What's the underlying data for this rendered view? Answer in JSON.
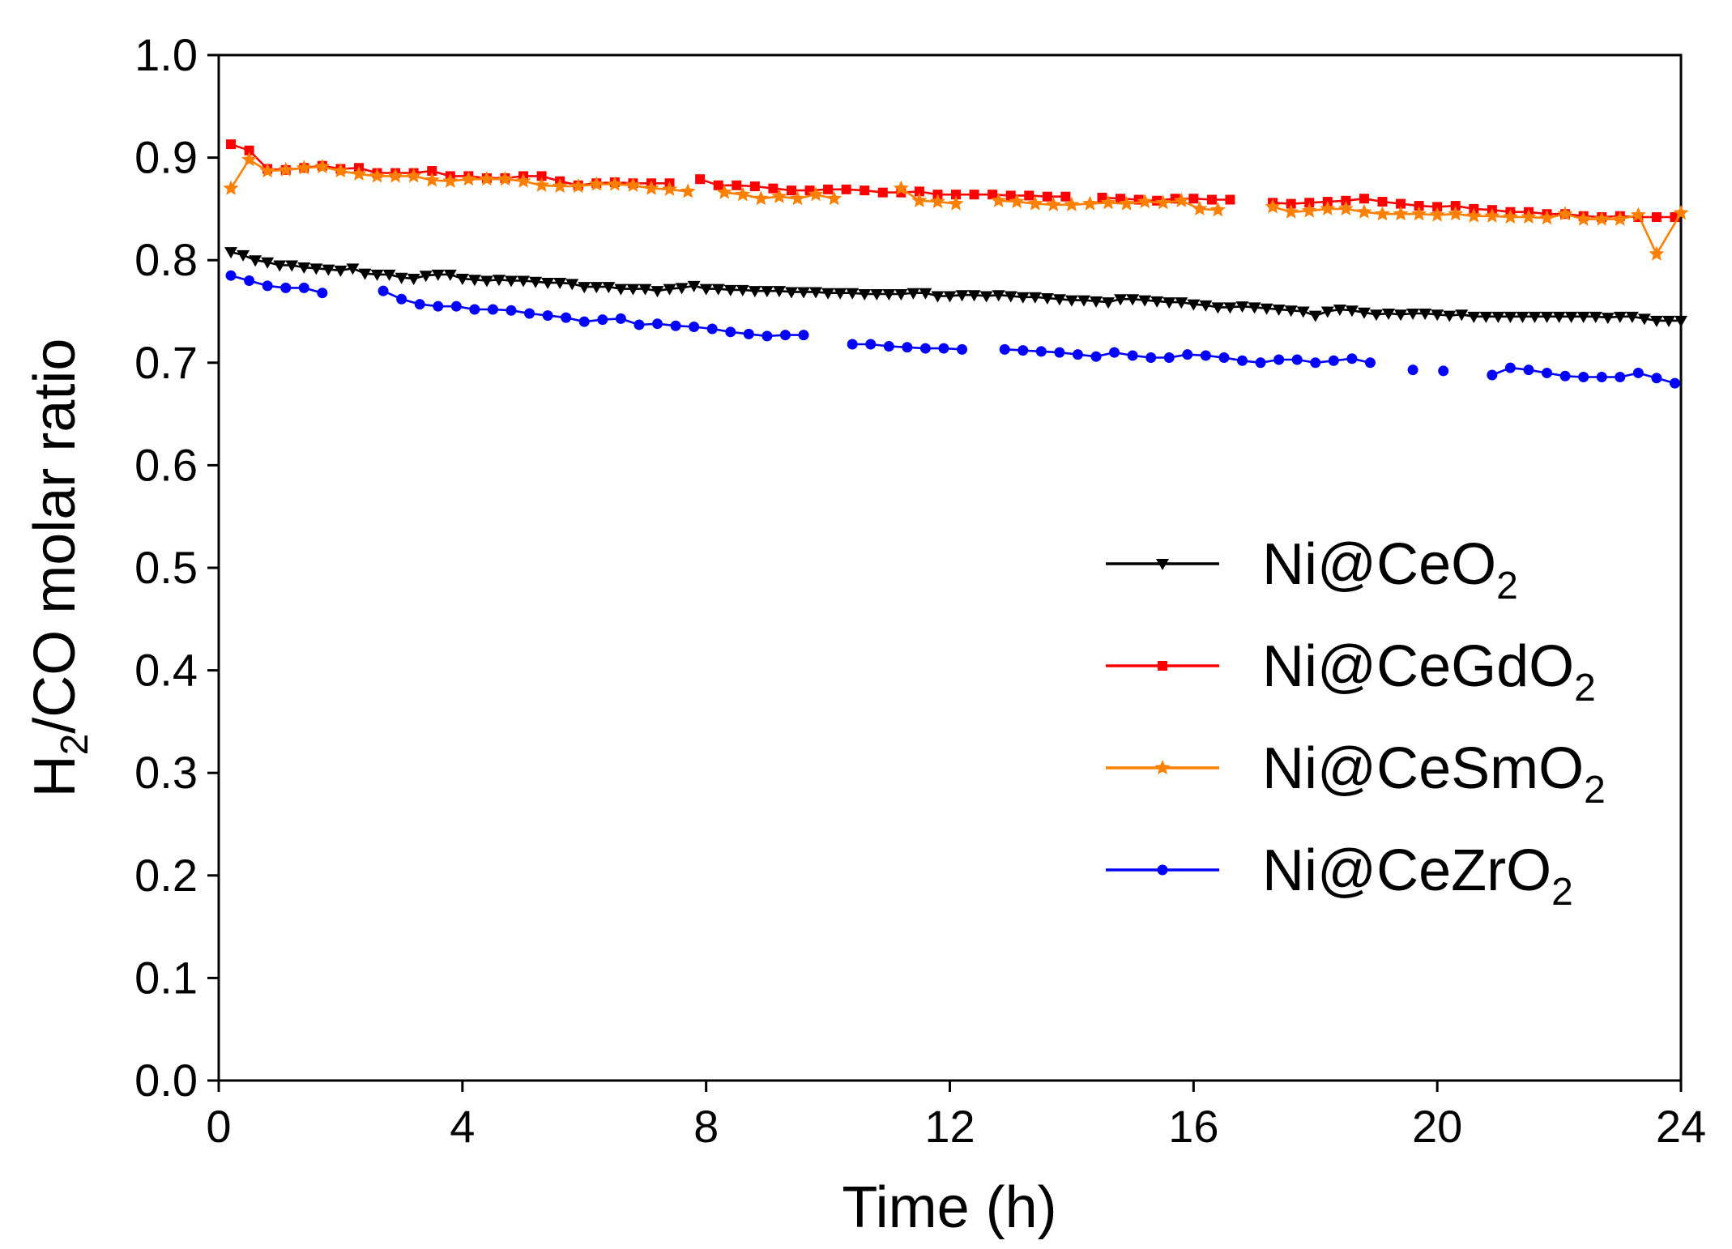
{
  "chart_data": {
    "type": "line",
    "title": "",
    "xlabel": "Time (h)",
    "ylabel": "H2/CO molar ratio",
    "ylabel_parts": {
      "main": "H",
      "sub": "2",
      "rest": "/CO molar ratio"
    },
    "xlim": [
      0,
      24
    ],
    "ylim": [
      0.0,
      1.0
    ],
    "x_ticks": [
      "0",
      "4",
      "8",
      "12",
      "16",
      "20",
      "24"
    ],
    "x_tick_values": [
      0,
      4,
      8,
      12,
      16,
      20,
      24
    ],
    "y_ticks": [
      "0.0",
      "0.1",
      "0.2",
      "0.3",
      "0.4",
      "0.5",
      "0.6",
      "0.7",
      "0.8",
      "0.9",
      "1.0"
    ],
    "y_tick_values": [
      0.0,
      0.1,
      0.2,
      0.3,
      0.4,
      0.5,
      0.6,
      0.7,
      0.8,
      0.9,
      1.0
    ],
    "grid": false,
    "legend_position": "center-right",
    "series": [
      {
        "name": "Ni@CeO2",
        "label_main": "Ni@CeO",
        "label_sub": "2",
        "color": "#000000",
        "marker": "triangle-down",
        "x": [
          0.2,
          0.4,
          0.6,
          0.8,
          1.0,
          1.2,
          1.4,
          1.6,
          1.8,
          2.0,
          2.2,
          2.4,
          2.6,
          2.8,
          3.0,
          3.2,
          3.4,
          3.6,
          3.8,
          4.0,
          4.2,
          4.4,
          4.6,
          4.8,
          5.0,
          5.2,
          5.4,
          5.6,
          5.8,
          6.0,
          6.2,
          6.4,
          6.6,
          6.8,
          7.0,
          7.2,
          7.4,
          7.6,
          7.8,
          8.0,
          8.2,
          8.4,
          8.6,
          8.8,
          9.0,
          9.2,
          9.4,
          9.6,
          9.8,
          10.0,
          10.2,
          10.4,
          10.6,
          10.8,
          11.0,
          11.2,
          11.4,
          11.6,
          11.8,
          12.0,
          12.2,
          12.4,
          12.6,
          12.8,
          13.0,
          13.2,
          13.4,
          13.6,
          13.8,
          14.0,
          14.2,
          14.4,
          14.6,
          14.8,
          15.0,
          15.2,
          15.4,
          15.6,
          15.8,
          16.0,
          16.2,
          16.4,
          16.6,
          16.8,
          17.0,
          17.2,
          17.4,
          17.6,
          17.8,
          18.0,
          18.2,
          18.4,
          18.6,
          18.8,
          19.0,
          19.2,
          19.4,
          19.6,
          19.8,
          20.0,
          20.2,
          20.4,
          20.6,
          20.8,
          21.0,
          21.2,
          21.4,
          21.6,
          21.8,
          22.0,
          22.2,
          22.4,
          22.6,
          22.8,
          23.0,
          23.2,
          23.4,
          23.6,
          23.8,
          24.0
        ],
        "y": [
          0.808,
          0.805,
          0.8,
          0.798,
          0.795,
          0.795,
          0.793,
          0.792,
          0.791,
          0.79,
          0.792,
          0.787,
          0.786,
          0.786,
          0.783,
          0.782,
          0.785,
          0.786,
          0.786,
          0.782,
          0.781,
          0.78,
          0.781,
          0.78,
          0.78,
          0.779,
          0.778,
          0.778,
          0.777,
          0.774,
          0.774,
          0.774,
          0.772,
          0.772,
          0.772,
          0.77,
          0.772,
          0.773,
          0.775,
          0.772,
          0.772,
          0.771,
          0.771,
          0.77,
          0.77,
          0.77,
          0.769,
          0.769,
          0.769,
          0.768,
          0.768,
          0.768,
          0.767,
          0.767,
          0.767,
          0.767,
          0.768,
          0.768,
          0.765,
          0.765,
          0.766,
          0.766,
          0.765,
          0.766,
          0.765,
          0.764,
          0.764,
          0.763,
          0.762,
          0.761,
          0.761,
          0.76,
          0.759,
          0.762,
          0.762,
          0.761,
          0.76,
          0.759,
          0.759,
          0.757,
          0.756,
          0.754,
          0.754,
          0.755,
          0.754,
          0.753,
          0.752,
          0.751,
          0.75,
          0.746,
          0.75,
          0.752,
          0.751,
          0.749,
          0.747,
          0.748,
          0.747,
          0.748,
          0.748,
          0.747,
          0.746,
          0.747,
          0.745,
          0.745,
          0.745,
          0.745,
          0.745,
          0.745,
          0.745,
          0.745,
          0.745,
          0.745,
          0.745,
          0.744,
          0.745,
          0.745,
          0.743,
          0.741,
          0.741,
          0.741
        ]
      },
      {
        "name": "Ni@CeGdO2",
        "label_main": "Ni@CeGdO",
        "label_sub": "2",
        "color": "#ff0000",
        "marker": "square",
        "x": [
          0.2,
          0.5,
          0.8,
          1.1,
          1.4,
          1.7,
          2.0,
          2.3,
          2.6,
          2.9,
          3.2,
          3.5,
          3.8,
          4.1,
          4.4,
          4.7,
          5.0,
          5.3,
          5.6,
          5.9,
          6.2,
          6.5,
          6.8,
          7.1,
          7.4,
          null,
          7.9,
          8.2,
          8.5,
          8.8,
          9.1,
          9.4,
          9.7,
          10.0,
          10.3,
          10.6,
          10.9,
          11.2,
          11.5,
          11.8,
          12.1,
          12.4,
          12.7,
          13.0,
          13.3,
          13.6,
          13.9,
          null,
          14.5,
          14.8,
          15.1,
          15.4,
          15.7,
          16.0,
          16.3,
          16.6,
          null,
          17.3,
          17.6,
          17.9,
          18.2,
          18.5,
          18.8,
          19.1,
          19.4,
          19.7,
          20.0,
          20.3,
          20.6,
          20.9,
          21.2,
          21.5,
          21.8,
          22.1,
          22.4,
          22.7,
          23.0,
          23.3,
          23.6,
          23.9
        ],
        "y": [
          0.913,
          0.907,
          0.889,
          0.888,
          0.89,
          0.892,
          0.889,
          0.89,
          0.885,
          0.885,
          0.885,
          0.887,
          0.882,
          0.882,
          0.88,
          0.88,
          0.882,
          0.882,
          0.877,
          0.873,
          0.875,
          0.876,
          0.875,
          0.875,
          0.875,
          null,
          0.879,
          0.873,
          0.873,
          0.872,
          0.87,
          0.868,
          0.868,
          0.869,
          0.869,
          0.868,
          0.866,
          0.866,
          0.867,
          0.864,
          0.864,
          0.864,
          0.864,
          0.863,
          0.863,
          0.862,
          0.862,
          null,
          0.861,
          0.86,
          0.859,
          0.858,
          0.86,
          0.86,
          0.859,
          0.859,
          null,
          0.856,
          0.855,
          0.856,
          0.857,
          0.858,
          0.86,
          0.857,
          0.855,
          0.853,
          0.852,
          0.853,
          0.85,
          0.849,
          0.847,
          0.847,
          0.845,
          0.845,
          0.843,
          0.842,
          0.843,
          0.842,
          0.842,
          0.842
        ]
      },
      {
        "name": "Ni@CeSmO2",
        "label_main": "Ni@CeSmO",
        "label_sub": "2",
        "color": "#ff7f00",
        "marker": "star",
        "x": [
          0.2,
          0.5,
          0.8,
          1.1,
          1.4,
          1.7,
          2.0,
          2.3,
          2.6,
          2.9,
          3.2,
          3.5,
          3.8,
          4.1,
          4.4,
          4.7,
          5.0,
          5.3,
          5.6,
          5.9,
          6.2,
          6.5,
          6.8,
          7.1,
          7.4,
          7.7,
          null,
          8.3,
          8.6,
          8.9,
          9.2,
          9.5,
          9.8,
          10.1,
          null,
          11.2,
          11.5,
          11.8,
          12.1,
          null,
          12.8,
          13.1,
          13.4,
          13.7,
          14.0,
          14.3,
          14.6,
          14.9,
          15.2,
          15.5,
          15.8,
          16.1,
          16.4,
          null,
          17.3,
          17.6,
          17.9,
          18.2,
          18.5,
          18.8,
          19.1,
          19.4,
          19.7,
          20.0,
          20.3,
          20.6,
          20.9,
          21.2,
          21.5,
          21.8,
          22.1,
          22.4,
          22.7,
          23.0,
          23.3,
          23.6,
          24.0
        ],
        "y": [
          0.87,
          0.898,
          0.887,
          0.888,
          0.89,
          0.891,
          0.887,
          0.884,
          0.882,
          0.882,
          0.882,
          0.878,
          0.877,
          0.879,
          0.879,
          0.879,
          0.877,
          0.873,
          0.872,
          0.872,
          0.874,
          0.874,
          0.873,
          0.87,
          0.869,
          0.867,
          null,
          0.866,
          0.864,
          0.86,
          0.862,
          0.86,
          0.864,
          0.86,
          null,
          0.87,
          0.858,
          0.857,
          0.855,
          null,
          0.858,
          0.857,
          0.855,
          0.854,
          0.854,
          0.855,
          0.856,
          0.855,
          0.857,
          0.856,
          0.858,
          0.85,
          0.849,
          null,
          0.852,
          0.847,
          0.848,
          0.85,
          0.85,
          0.847,
          0.845,
          0.845,
          0.845,
          0.844,
          0.845,
          0.843,
          0.843,
          0.842,
          0.842,
          0.841,
          0.845,
          0.84,
          0.84,
          0.84,
          0.844,
          0.806,
          0.846
        ]
      },
      {
        "name": "Ni@CeZrO2",
        "label_main": "Ni@CeZrO",
        "label_sub": "2",
        "color": "#0000ff",
        "marker": "circle",
        "x": [
          0.2,
          0.5,
          0.8,
          1.1,
          1.4,
          1.7,
          null,
          2.7,
          3.0,
          3.3,
          3.6,
          3.9,
          4.2,
          4.5,
          4.8,
          5.1,
          5.4,
          5.7,
          6.0,
          6.3,
          6.6,
          6.9,
          7.2,
          7.5,
          7.8,
          8.1,
          8.4,
          8.7,
          9.0,
          9.3,
          9.6,
          null,
          10.4,
          10.7,
          11.0,
          11.3,
          11.6,
          11.9,
          12.2,
          null,
          12.9,
          13.2,
          13.5,
          13.8,
          14.1,
          14.4,
          14.7,
          15.0,
          15.3,
          15.6,
          15.9,
          16.2,
          16.5,
          16.8,
          17.1,
          17.4,
          17.7,
          18.0,
          18.3,
          18.6,
          18.9,
          null,
          19.6,
          null,
          20.1,
          null,
          20.9,
          21.2,
          21.5,
          21.8,
          22.1,
          22.4,
          22.7,
          23.0,
          23.3,
          23.6,
          23.9
        ],
        "y": [
          0.785,
          0.78,
          0.775,
          0.773,
          0.773,
          0.768,
          null,
          0.77,
          0.762,
          0.757,
          0.755,
          0.755,
          0.752,
          0.752,
          0.751,
          0.748,
          0.746,
          0.744,
          0.74,
          0.742,
          0.743,
          0.737,
          0.738,
          0.736,
          0.735,
          0.733,
          0.73,
          0.728,
          0.726,
          0.727,
          0.727,
          null,
          0.718,
          0.718,
          0.716,
          0.715,
          0.714,
          0.714,
          0.713,
          null,
          0.713,
          0.712,
          0.711,
          0.71,
          0.708,
          0.706,
          0.71,
          0.707,
          0.705,
          0.705,
          0.708,
          0.707,
          0.705,
          0.702,
          0.7,
          0.703,
          0.703,
          0.7,
          0.702,
          0.704,
          0.7,
          null,
          0.693,
          null,
          0.692,
          null,
          0.688,
          0.695,
          0.693,
          0.69,
          0.687,
          0.686,
          0.686,
          0.686,
          0.69,
          0.685,
          0.68
        ]
      }
    ]
  }
}
